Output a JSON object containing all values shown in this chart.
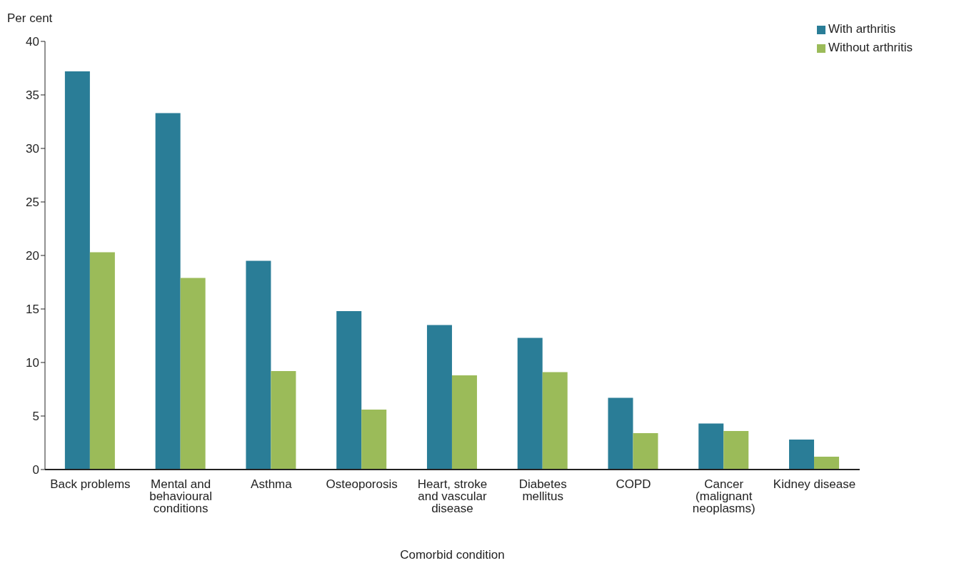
{
  "chart_data": {
    "type": "bar",
    "ylabel": "Per cent",
    "xlabel": "Comorbid condition",
    "categories": [
      "Back problems",
      "Mental and behavioural conditions",
      "Asthma",
      "Osteoporosis",
      "Heart, stroke and vascular disease",
      "Diabetes mellitus",
      "COPD",
      "Cancer (malignant neoplasms)",
      "Kidney disease"
    ],
    "series": [
      {
        "name": "With arthritis",
        "color": "#2a7d97",
        "values": [
          37.2,
          33.3,
          19.5,
          14.8,
          13.5,
          12.3,
          6.7,
          4.3,
          2.8
        ]
      },
      {
        "name": "Without arthritis",
        "color": "#9bbb59",
        "values": [
          20.3,
          17.9,
          9.2,
          5.6,
          8.8,
          9.1,
          3.4,
          3.6,
          1.2
        ]
      }
    ],
    "ylim": [
      0,
      40
    ],
    "yticks": [
      0,
      5,
      10,
      15,
      20,
      25,
      30,
      35,
      40
    ],
    "grid": false,
    "legend": "top right"
  }
}
